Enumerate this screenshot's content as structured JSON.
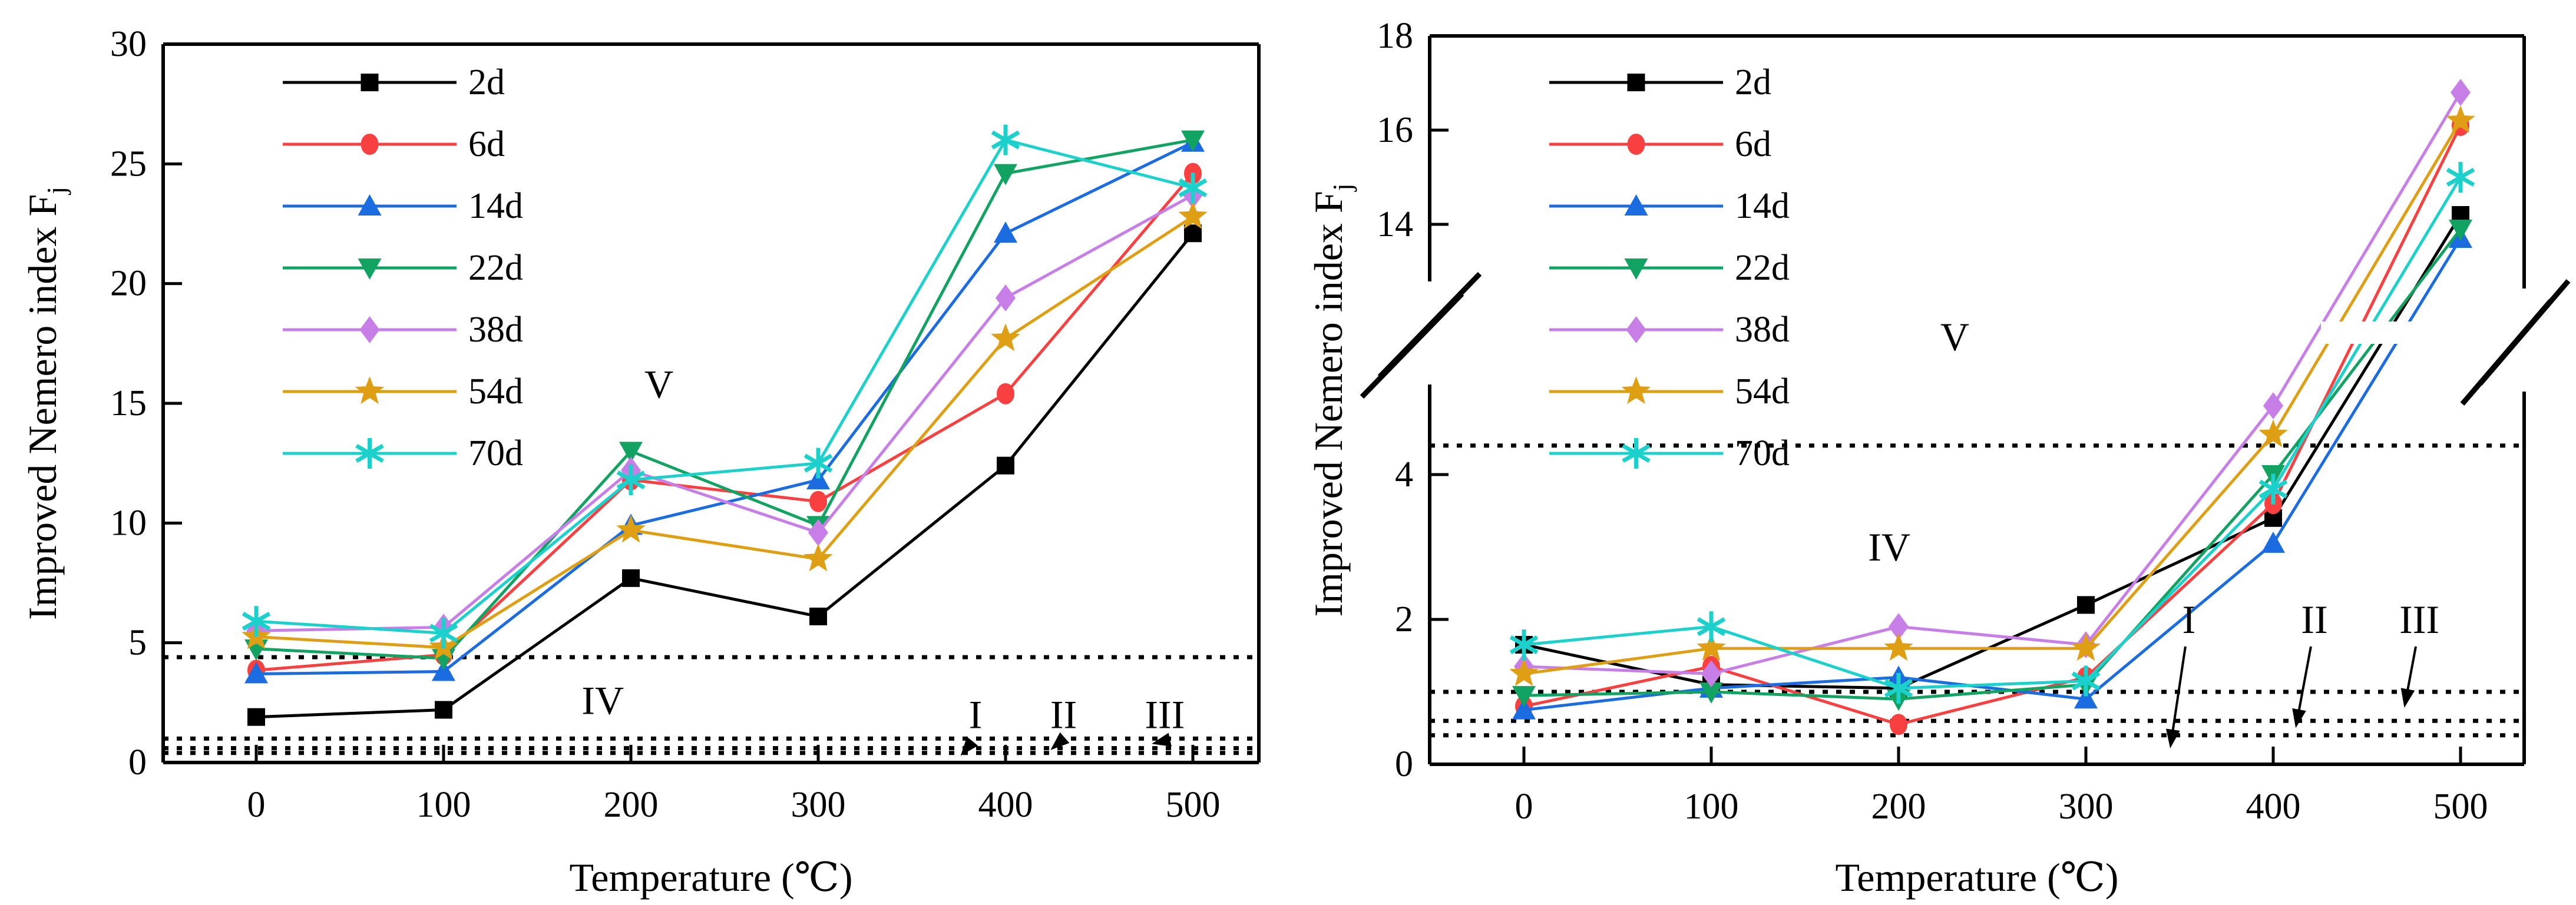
{
  "figure": {
    "background": "#ffffff",
    "xlabel": "Temperature (℃)",
    "ylabel_main": "Improved Nemero index F",
    "ylabel_sub": "j"
  },
  "chart_data": [
    {
      "type": "line",
      "title": "",
      "xlabel": "Temperature (℃)",
      "ylabel": "Improved Nemero index Fj",
      "x": [
        0,
        100,
        200,
        300,
        400,
        500
      ],
      "x_tick_labels": [
        "0",
        "100",
        "200",
        "300",
        "400",
        "500"
      ],
      "ylim": [
        0,
        30
      ],
      "yticks": [
        0,
        5,
        10,
        15,
        20,
        25,
        30
      ],
      "grid": false,
      "legend_position": "upper-left",
      "legend_order": [
        "2d",
        "6d",
        "14d",
        "22d",
        "38d",
        "54d",
        "70d"
      ],
      "series": [
        {
          "name": "2d",
          "color": "#000000",
          "marker": "square",
          "values": [
            1.9,
            2.2,
            7.7,
            6.1,
            12.4,
            22.1
          ]
        },
        {
          "name": "6d",
          "color": "#F94040",
          "marker": "circle",
          "values": [
            3.85,
            4.5,
            11.8,
            10.9,
            15.4,
            24.6
          ]
        },
        {
          "name": "14d",
          "color": "#1B6BE1",
          "marker": "triangle-up",
          "values": [
            3.7,
            3.8,
            9.9,
            11.8,
            22.1,
            25.9
          ]
        },
        {
          "name": "22d",
          "color": "#12A362",
          "marker": "triangle-down",
          "values": [
            4.75,
            4.35,
            13.0,
            9.9,
            24.6,
            26.0
          ]
        },
        {
          "name": "38d",
          "color": "#C77EE6",
          "marker": "diamond",
          "values": [
            5.5,
            5.65,
            12.2,
            9.6,
            19.4,
            23.7
          ]
        },
        {
          "name": "54d",
          "color": "#DE9F14",
          "marker": "star",
          "values": [
            5.25,
            4.8,
            9.7,
            8.5,
            17.7,
            22.8
          ]
        },
        {
          "name": "70d",
          "color": "#1CD1CB",
          "marker": "asterisk",
          "values": [
            5.9,
            5.4,
            11.8,
            12.5,
            26.0,
            24.0
          ]
        }
      ],
      "threshold_lines": [
        0.4,
        0.6,
        1.0,
        4.4
      ],
      "region_labels": [
        {
          "text": "IV",
          "x": 185,
          "y": 2.6
        },
        {
          "text": "V",
          "x": 215,
          "y": 15.8
        }
      ],
      "pointer_labels": [
        {
          "text": "I",
          "x": 384,
          "y": 2.0,
          "tip_x": 376,
          "tip_y": 0.28
        },
        {
          "text": "II",
          "x": 431,
          "y": 2.0,
          "tip_x": 424,
          "tip_y": 0.52
        },
        {
          "text": "III",
          "x": 485,
          "y": 2.0,
          "tip_x": 478,
          "tip_y": 0.78
        }
      ],
      "y_break": null
    },
    {
      "type": "line",
      "title": "",
      "xlabel": "Temperature (℃)",
      "ylabel": "Improved Nemero index Fj",
      "x": [
        0,
        100,
        200,
        300,
        400,
        500
      ],
      "x_tick_labels": [
        "0",
        "100",
        "200",
        "300",
        "400",
        "500"
      ],
      "ylim": [
        0,
        18
      ],
      "grid": false,
      "legend_position": "upper-left",
      "legend_order": [
        "2d",
        "6d",
        "14d",
        "22d",
        "38d",
        "54d",
        "70d"
      ],
      "y_break": {
        "yticks_lower": [
          0,
          2,
          4
        ],
        "yticks_upper": [
          14,
          16,
          18
        ],
        "lower_max": 5,
        "upper_min": 13
      },
      "series": [
        {
          "name": "2d",
          "color": "#000000",
          "marker": "square",
          "values": [
            1.65,
            1.1,
            1.05,
            2.2,
            3.4,
            14.2
          ]
        },
        {
          "name": "6d",
          "color": "#F94040",
          "marker": "circle",
          "values": [
            0.8,
            1.35,
            0.55,
            1.2,
            3.6,
            16.1
          ]
        },
        {
          "name": "14d",
          "color": "#1B6BE1",
          "marker": "triangle-up",
          "values": [
            0.75,
            1.05,
            1.2,
            0.9,
            3.05,
            13.7
          ]
        },
        {
          "name": "22d",
          "color": "#12A362",
          "marker": "triangle-down",
          "values": [
            0.95,
            1.0,
            0.9,
            1.1,
            4.0,
            13.9
          ]
        },
        {
          "name": "38d",
          "color": "#C77EE6",
          "marker": "diamond",
          "values": [
            1.35,
            1.25,
            1.9,
            1.65,
            4.95,
            16.8
          ]
        },
        {
          "name": "54d",
          "color": "#DE9F14",
          "marker": "star",
          "values": [
            1.25,
            1.6,
            1.6,
            1.6,
            4.55,
            16.2
          ]
        },
        {
          "name": "70d",
          "color": "#1CD1CB",
          "marker": "asterisk",
          "values": [
            1.65,
            1.9,
            1.05,
            1.15,
            3.8,
            15.0
          ]
        }
      ],
      "threshold_lines": [
        0.4,
        0.6,
        1.0,
        4.4
      ],
      "region_labels": [
        {
          "text": "IV",
          "x": 195,
          "y": 3.0
        },
        {
          "text": "V",
          "x": 230,
          "y": 9.0
        }
      ],
      "pointer_labels": [
        {
          "text": "I",
          "x": 355,
          "y": 2.0,
          "tip_x": 345,
          "tip_y": 0.22
        },
        {
          "text": "II",
          "x": 422,
          "y": 2.0,
          "tip_x": 412,
          "tip_y": 0.5
        },
        {
          "text": "III",
          "x": 478,
          "y": 2.0,
          "tip_x": 470,
          "tip_y": 0.78
        }
      ]
    }
  ]
}
